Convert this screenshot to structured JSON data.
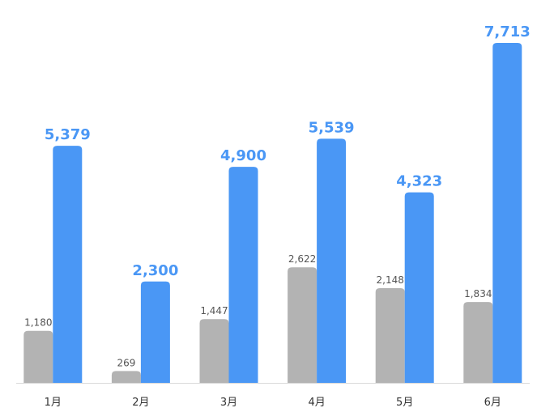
{
  "chart_data": {
    "type": "bar",
    "categories": [
      "1月",
      "2月",
      "3月",
      "4月",
      "5月",
      "6月"
    ],
    "series": [
      {
        "color": "#b3b3b3",
        "values": [
          1180,
          269,
          1447,
          2622,
          2148,
          1834
        ],
        "value_labels": [
          "1,180",
          "269",
          "1,447",
          "2,622",
          "2,148",
          "1,834"
        ]
      },
      {
        "color": "#4a97f5",
        "values": [
          5379,
          2300,
          4900,
          5539,
          4323,
          7713
        ],
        "value_labels": [
          "5,379",
          "2,300",
          "4,900",
          "5,539",
          "4,323",
          "7,713"
        ]
      }
    ]
  }
}
